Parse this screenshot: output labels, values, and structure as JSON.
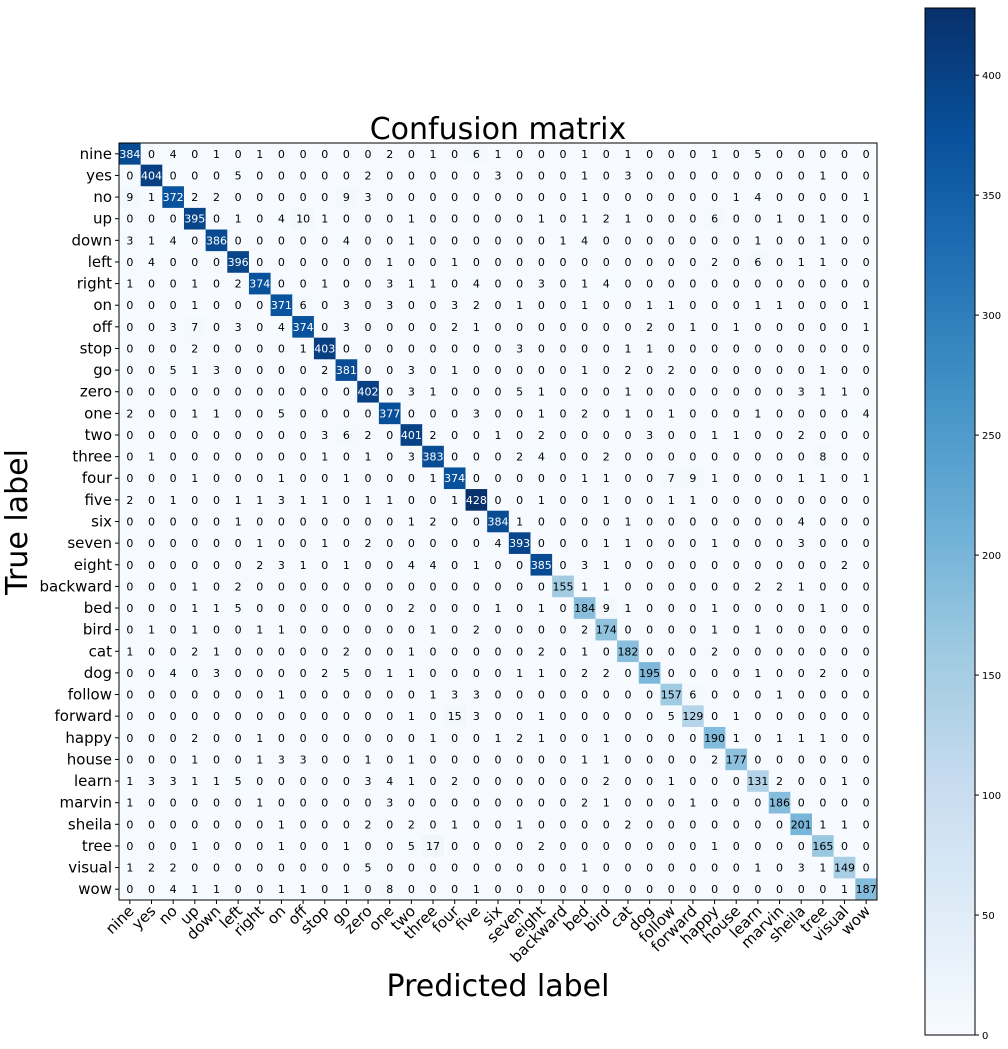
{
  "chart_data": {
    "type": "heatmap",
    "title": "Confusion matrix",
    "xlabel": "Predicted label",
    "ylabel": "True label",
    "colormap": "Blues",
    "colorbar": {
      "min": 0,
      "max": 428,
      "ticks": [
        0,
        50,
        100,
        150,
        200,
        250,
        300,
        350,
        400
      ]
    },
    "labels": [
      "nine",
      "yes",
      "no",
      "up",
      "down",
      "left",
      "right",
      "on",
      "off",
      "stop",
      "go",
      "zero",
      "one",
      "two",
      "three",
      "four",
      "five",
      "six",
      "seven",
      "eight",
      "backward",
      "bed",
      "bird",
      "cat",
      "dog",
      "follow",
      "forward",
      "happy",
      "house",
      "learn",
      "marvin",
      "sheila",
      "tree",
      "visual",
      "wow"
    ],
    "matrix": [
      [
        384,
        0,
        4,
        0,
        1,
        0,
        1,
        0,
        0,
        0,
        0,
        0,
        2,
        0,
        1,
        0,
        6,
        1,
        0,
        0,
        0,
        1,
        0,
        1,
        0,
        0,
        0,
        1,
        0,
        5,
        0,
        0,
        0,
        0,
        0
      ],
      [
        0,
        404,
        0,
        0,
        0,
        5,
        0,
        0,
        0,
        0,
        0,
        2,
        0,
        0,
        0,
        0,
        0,
        3,
        0,
        0,
        0,
        1,
        0,
        3,
        0,
        0,
        0,
        0,
        0,
        0,
        0,
        0,
        1,
        0,
        0
      ],
      [
        9,
        1,
        372,
        2,
        2,
        0,
        0,
        0,
        0,
        0,
        9,
        3,
        0,
        0,
        0,
        0,
        0,
        0,
        0,
        0,
        0,
        1,
        0,
        0,
        0,
        0,
        0,
        0,
        1,
        4,
        0,
        0,
        0,
        0,
        1
      ],
      [
        0,
        0,
        0,
        395,
        0,
        1,
        0,
        4,
        10,
        1,
        0,
        0,
        0,
        1,
        0,
        0,
        0,
        0,
        0,
        1,
        0,
        1,
        2,
        1,
        0,
        0,
        0,
        6,
        0,
        0,
        1,
        0,
        1,
        0,
        0
      ],
      [
        3,
        1,
        4,
        0,
        386,
        0,
        0,
        0,
        0,
        0,
        4,
        0,
        0,
        1,
        0,
        0,
        0,
        0,
        0,
        0,
        1,
        4,
        0,
        0,
        0,
        0,
        0,
        0,
        0,
        1,
        0,
        0,
        1,
        0,
        0
      ],
      [
        0,
        4,
        0,
        0,
        0,
        396,
        0,
        0,
        0,
        0,
        0,
        0,
        1,
        0,
        0,
        1,
        0,
        0,
        0,
        0,
        0,
        0,
        0,
        0,
        0,
        0,
        0,
        2,
        0,
        6,
        0,
        1,
        1,
        0,
        0
      ],
      [
        1,
        0,
        0,
        1,
        0,
        2,
        374,
        0,
        0,
        1,
        0,
        0,
        3,
        1,
        1,
        0,
        4,
        0,
        0,
        3,
        0,
        1,
        4,
        0,
        0,
        0,
        0,
        0,
        0,
        0,
        0,
        0,
        0,
        0,
        0
      ],
      [
        0,
        0,
        0,
        1,
        0,
        0,
        0,
        371,
        6,
        0,
        3,
        0,
        3,
        0,
        0,
        3,
        2,
        0,
        1,
        0,
        0,
        1,
        0,
        0,
        1,
        1,
        0,
        0,
        0,
        1,
        1,
        0,
        0,
        0,
        1
      ],
      [
        0,
        0,
        3,
        7,
        0,
        3,
        0,
        4,
        374,
        0,
        3,
        0,
        0,
        0,
        0,
        2,
        1,
        0,
        0,
        0,
        0,
        0,
        0,
        0,
        2,
        0,
        1,
        0,
        1,
        0,
        0,
        0,
        0,
        0,
        1
      ],
      [
        0,
        0,
        0,
        2,
        0,
        0,
        0,
        0,
        1,
        403,
        0,
        0,
        0,
        0,
        0,
        0,
        0,
        0,
        3,
        0,
        0,
        0,
        0,
        1,
        1,
        0,
        0,
        0,
        0,
        0,
        0,
        0,
        0,
        0,
        0
      ],
      [
        0,
        0,
        5,
        1,
        3,
        0,
        0,
        0,
        0,
        2,
        381,
        0,
        0,
        3,
        0,
        1,
        0,
        0,
        0,
        0,
        0,
        1,
        0,
        2,
        0,
        2,
        0,
        0,
        0,
        0,
        0,
        0,
        1,
        0,
        0
      ],
      [
        0,
        0,
        0,
        0,
        0,
        0,
        0,
        0,
        0,
        0,
        0,
        402,
        0,
        3,
        1,
        0,
        0,
        0,
        5,
        1,
        0,
        0,
        0,
        1,
        0,
        0,
        0,
        0,
        0,
        0,
        0,
        3,
        1,
        1,
        0
      ],
      [
        2,
        0,
        0,
        1,
        1,
        0,
        0,
        5,
        0,
        0,
        0,
        0,
        377,
        0,
        0,
        0,
        3,
        0,
        0,
        1,
        0,
        2,
        0,
        1,
        0,
        1,
        0,
        0,
        0,
        1,
        0,
        0,
        0,
        0,
        4
      ],
      [
        0,
        0,
        0,
        0,
        0,
        0,
        0,
        0,
        0,
        3,
        6,
        2,
        0,
        401,
        2,
        0,
        0,
        1,
        0,
        2,
        0,
        0,
        0,
        0,
        3,
        0,
        0,
        1,
        1,
        0,
        0,
        2,
        0,
        0,
        0
      ],
      [
        0,
        1,
        0,
        0,
        0,
        0,
        0,
        0,
        0,
        1,
        0,
        1,
        0,
        3,
        383,
        0,
        0,
        0,
        2,
        4,
        0,
        0,
        2,
        0,
        0,
        0,
        0,
        0,
        0,
        0,
        0,
        0,
        8,
        0,
        0
      ],
      [
        0,
        0,
        0,
        1,
        0,
        0,
        0,
        1,
        0,
        0,
        1,
        0,
        0,
        0,
        1,
        374,
        0,
        0,
        0,
        0,
        0,
        1,
        1,
        0,
        0,
        7,
        9,
        1,
        0,
        0,
        0,
        1,
        1,
        0,
        1
      ],
      [
        2,
        0,
        1,
        0,
        0,
        1,
        1,
        3,
        1,
        1,
        0,
        1,
        1,
        0,
        0,
        1,
        428,
        0,
        0,
        1,
        0,
        0,
        1,
        0,
        0,
        1,
        1,
        0,
        0,
        0,
        0,
        0,
        0,
        0,
        0
      ],
      [
        0,
        0,
        0,
        0,
        0,
        1,
        0,
        0,
        0,
        0,
        0,
        0,
        0,
        1,
        2,
        0,
        0,
        384,
        1,
        0,
        0,
        0,
        0,
        1,
        0,
        0,
        0,
        0,
        0,
        0,
        0,
        4,
        0,
        0,
        0
      ],
      [
        0,
        0,
        0,
        0,
        0,
        0,
        1,
        0,
        0,
        1,
        0,
        2,
        0,
        0,
        0,
        0,
        0,
        4,
        393,
        0,
        0,
        0,
        1,
        1,
        0,
        0,
        0,
        1,
        0,
        0,
        0,
        3,
        0,
        0,
        0
      ],
      [
        0,
        0,
        0,
        0,
        0,
        0,
        2,
        3,
        1,
        0,
        1,
        0,
        0,
        4,
        4,
        0,
        1,
        0,
        0,
        385,
        0,
        3,
        1,
        0,
        0,
        0,
        0,
        0,
        0,
        0,
        0,
        0,
        0,
        2,
        0
      ],
      [
        0,
        0,
        0,
        1,
        0,
        2,
        0,
        0,
        0,
        0,
        0,
        0,
        0,
        0,
        0,
        0,
        0,
        0,
        0,
        0,
        155,
        1,
        1,
        0,
        0,
        0,
        0,
        0,
        0,
        2,
        2,
        1,
        0,
        0,
        0
      ],
      [
        0,
        0,
        0,
        1,
        1,
        5,
        0,
        0,
        0,
        0,
        0,
        0,
        0,
        2,
        0,
        0,
        0,
        1,
        0,
        1,
        0,
        184,
        9,
        1,
        0,
        0,
        0,
        1,
        0,
        0,
        0,
        0,
        1,
        0,
        0
      ],
      [
        0,
        1,
        0,
        1,
        0,
        0,
        1,
        1,
        0,
        0,
        0,
        0,
        0,
        0,
        1,
        0,
        2,
        0,
        0,
        0,
        0,
        2,
        174,
        0,
        0,
        0,
        0,
        1,
        0,
        1,
        0,
        0,
        0,
        0,
        0
      ],
      [
        1,
        0,
        0,
        2,
        1,
        0,
        0,
        0,
        0,
        0,
        2,
        0,
        0,
        1,
        0,
        0,
        0,
        0,
        0,
        2,
        0,
        1,
        0,
        182,
        0,
        0,
        0,
        2,
        0,
        0,
        0,
        0,
        0,
        0,
        0
      ],
      [
        0,
        0,
        4,
        0,
        3,
        0,
        0,
        0,
        0,
        2,
        5,
        0,
        1,
        1,
        0,
        0,
        0,
        0,
        1,
        1,
        0,
        2,
        2,
        0,
        195,
        0,
        0,
        0,
        0,
        1,
        0,
        0,
        2,
        0,
        0
      ],
      [
        0,
        0,
        0,
        0,
        0,
        0,
        0,
        1,
        0,
        0,
        0,
        0,
        0,
        0,
        1,
        3,
        3,
        0,
        0,
        0,
        0,
        0,
        0,
        0,
        0,
        157,
        6,
        0,
        0,
        0,
        1,
        0,
        0,
        0,
        0
      ],
      [
        0,
        0,
        0,
        0,
        0,
        0,
        0,
        0,
        0,
        0,
        0,
        0,
        0,
        1,
        0,
        15,
        3,
        0,
        0,
        1,
        0,
        0,
        0,
        0,
        0,
        5,
        129,
        0,
        1,
        0,
        0,
        0,
        0,
        0,
        0
      ],
      [
        0,
        0,
        0,
        2,
        0,
        0,
        1,
        0,
        0,
        0,
        0,
        0,
        0,
        0,
        1,
        0,
        0,
        1,
        2,
        1,
        0,
        0,
        1,
        0,
        0,
        0,
        0,
        190,
        1,
        0,
        1,
        1,
        1,
        0,
        0
      ],
      [
        0,
        0,
        0,
        1,
        0,
        0,
        1,
        3,
        3,
        0,
        0,
        1,
        0,
        1,
        0,
        0,
        0,
        0,
        0,
        0,
        0,
        1,
        1,
        0,
        0,
        0,
        0,
        2,
        177,
        0,
        0,
        0,
        0,
        0,
        0
      ],
      [
        1,
        3,
        3,
        1,
        1,
        5,
        0,
        0,
        0,
        0,
        0,
        3,
        4,
        1,
        0,
        2,
        0,
        0,
        0,
        0,
        0,
        0,
        2,
        0,
        0,
        1,
        0,
        0,
        0,
        131,
        2,
        0,
        0,
        1,
        0
      ],
      [
        1,
        0,
        0,
        0,
        0,
        0,
        1,
        0,
        0,
        0,
        0,
        0,
        3,
        0,
        0,
        0,
        0,
        0,
        0,
        0,
        0,
        2,
        1,
        0,
        0,
        0,
        1,
        0,
        0,
        0,
        186,
        0,
        0,
        0,
        0
      ],
      [
        0,
        0,
        0,
        0,
        0,
        0,
        0,
        1,
        0,
        0,
        0,
        2,
        0,
        2,
        0,
        1,
        0,
        0,
        1,
        0,
        0,
        0,
        0,
        2,
        0,
        0,
        0,
        0,
        0,
        0,
        0,
        201,
        1,
        1,
        0
      ],
      [
        0,
        0,
        0,
        1,
        0,
        0,
        0,
        1,
        0,
        0,
        1,
        0,
        0,
        5,
        17,
        0,
        0,
        0,
        0,
        2,
        0,
        0,
        0,
        0,
        0,
        0,
        0,
        1,
        0,
        0,
        0,
        0,
        165,
        0,
        0
      ],
      [
        1,
        2,
        2,
        0,
        0,
        0,
        0,
        0,
        0,
        0,
        0,
        5,
        0,
        0,
        0,
        0,
        0,
        0,
        0,
        0,
        0,
        1,
        0,
        0,
        0,
        0,
        0,
        0,
        0,
        1,
        0,
        3,
        1,
        149,
        0
      ],
      [
        0,
        0,
        4,
        1,
        1,
        0,
        0,
        1,
        1,
        0,
        1,
        0,
        8,
        0,
        0,
        0,
        1,
        0,
        0,
        0,
        0,
        0,
        0,
        0,
        0,
        0,
        0,
        0,
        0,
        0,
        0,
        0,
        0,
        1,
        187
      ]
    ]
  }
}
